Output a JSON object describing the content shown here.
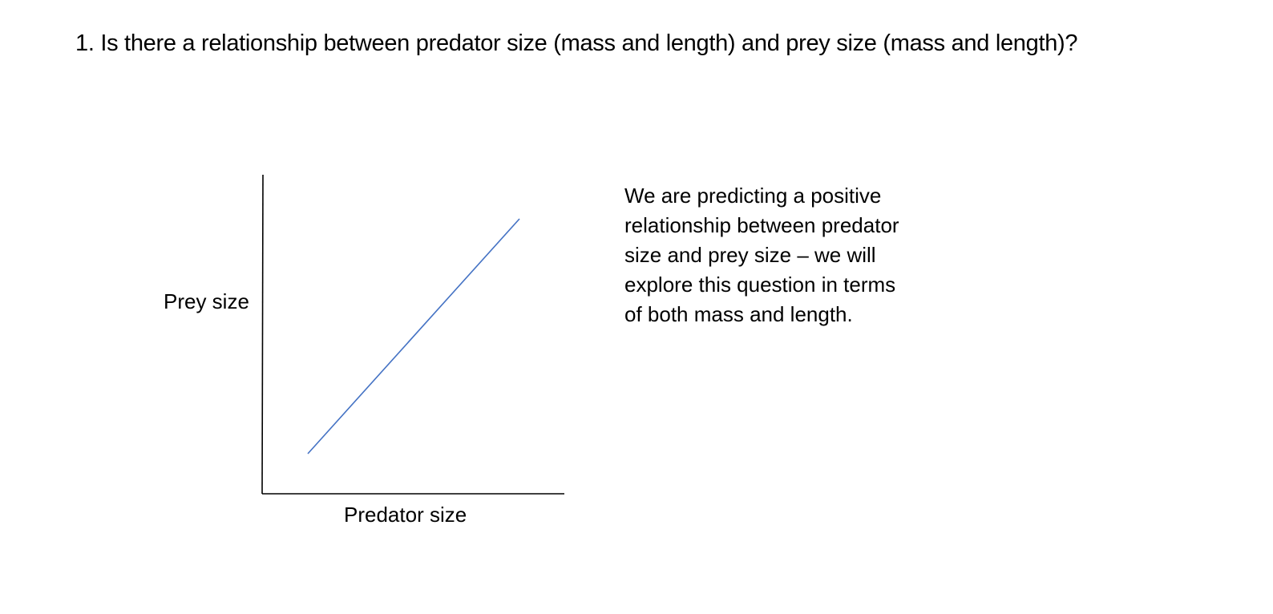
{
  "question": "1. Is there a relationship between predator size (mass and length) and prey size (mass and length)?",
  "diagram": {
    "y_label": "Prey size",
    "x_label": "Predator size",
    "trend": "positive",
    "line_color": "#4472C4",
    "axis_color": "#000000"
  },
  "note": {
    "lines": [
      "We are predicting a positive",
      "relationship between predator",
      "size and prey size – we will",
      "explore this question in terms",
      "of both mass and length."
    ]
  }
}
